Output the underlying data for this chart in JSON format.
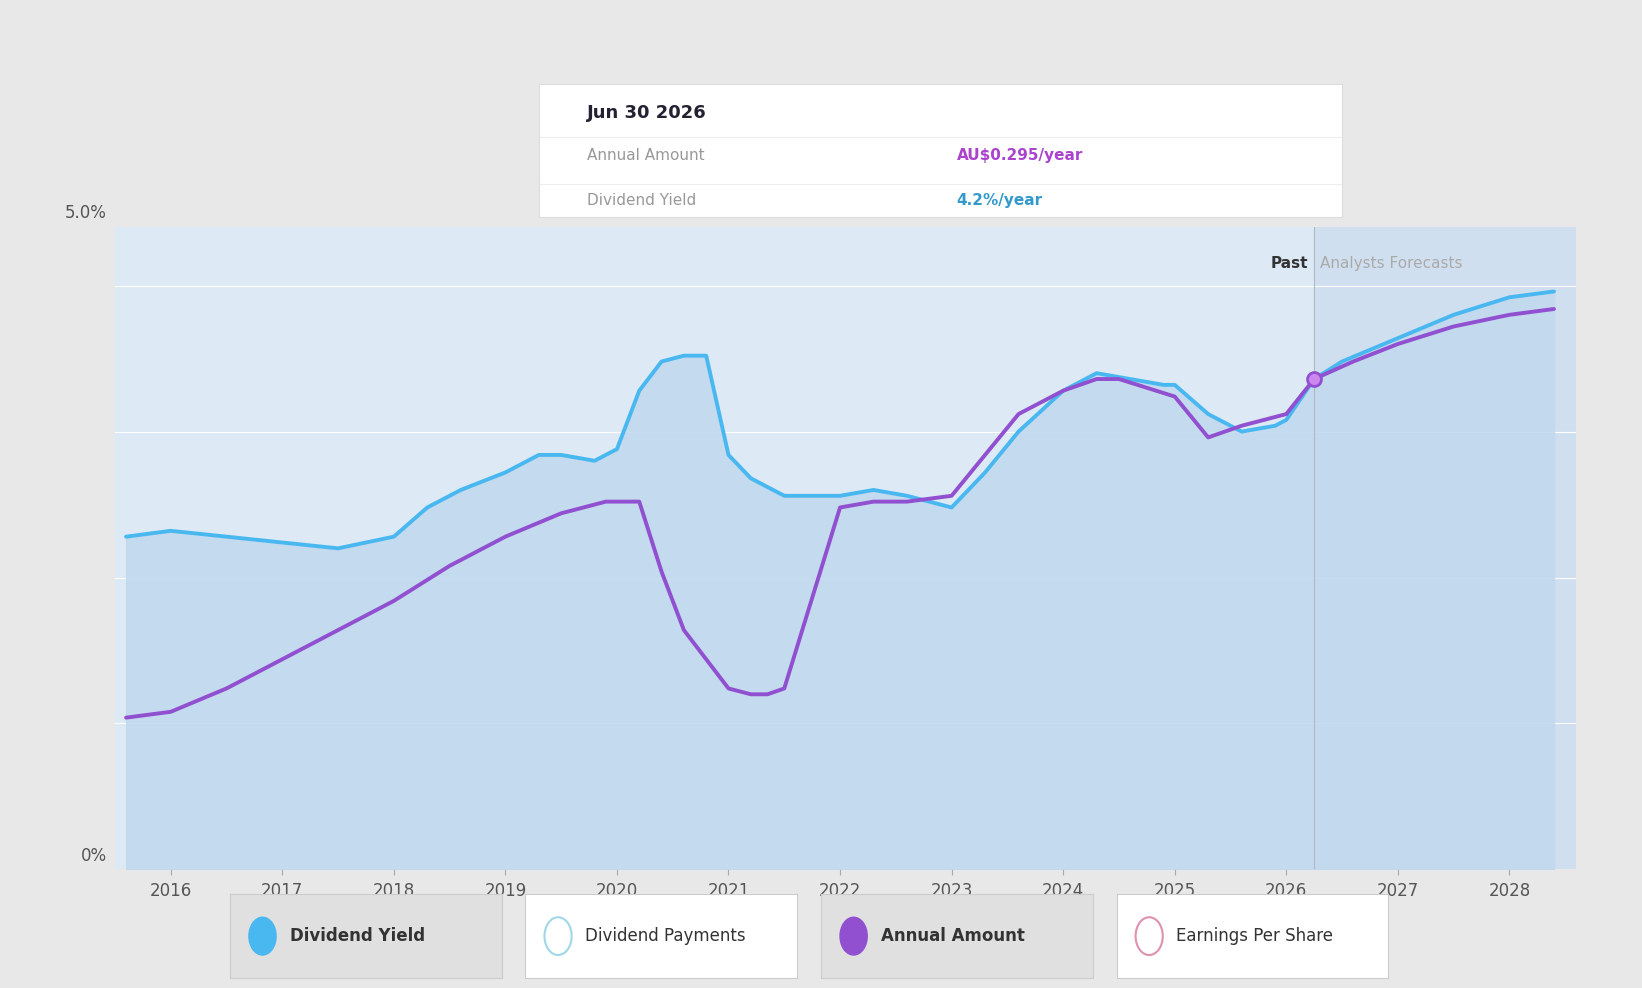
{
  "bg_color": "#e8e8e8",
  "plot_bg": "#ddeaf5",
  "forecast_bg": "#c8d8eb",
  "grid_color": "#f0f4f8",
  "div_yield_color": "#4ab8f0",
  "annual_amount_color": "#9050d0",
  "fill_color": "#c0d8ee",
  "past_label": "Past",
  "forecast_label": "Analysts Forecasts",
  "forecast_start": 2026.25,
  "tooltip_title": "Jun 30 2026",
  "tooltip_annual_label": "Annual Amount",
  "tooltip_annual_value": "AU$0.295/year",
  "tooltip_yield_label": "Dividend Yield",
  "tooltip_yield_value": "4.2%/year",
  "tooltip_annual_color": "#aa44cc",
  "tooltip_yield_color": "#3399cc",
  "legend_items": [
    "Dividend Yield",
    "Dividend Payments",
    "Annual Amount",
    "Earnings Per Share"
  ],
  "legend_colors_fill": [
    "#4ab8f0",
    "#a0d8e8",
    "#9050d0",
    "#e090b0"
  ],
  "legend_filled": [
    true,
    false,
    true,
    false
  ],
  "div_yield_x": [
    2015.6,
    2016.0,
    2016.5,
    2017.0,
    2017.5,
    2018.0,
    2018.3,
    2018.6,
    2019.0,
    2019.3,
    2019.5,
    2019.8,
    2020.0,
    2020.2,
    2020.4,
    2020.6,
    2020.8,
    2021.0,
    2021.2,
    2021.5,
    2021.7,
    2022.0,
    2022.3,
    2022.6,
    2023.0,
    2023.3,
    2023.6,
    2024.0,
    2024.3,
    2024.6,
    2024.9,
    2025.0,
    2025.3,
    2025.6,
    2025.9,
    2026.0,
    2026.25,
    2026.5,
    2027.0,
    2027.5,
    2028.0,
    2028.4
  ],
  "div_yield_y": [
    2.85,
    2.9,
    2.85,
    2.8,
    2.75,
    2.85,
    3.1,
    3.25,
    3.4,
    3.55,
    3.55,
    3.5,
    3.6,
    4.1,
    4.35,
    4.4,
    4.4,
    3.55,
    3.35,
    3.2,
    3.2,
    3.2,
    3.25,
    3.2,
    3.1,
    3.4,
    3.75,
    4.1,
    4.25,
    4.2,
    4.15,
    4.15,
    3.9,
    3.75,
    3.8,
    3.85,
    4.2,
    4.35,
    4.55,
    4.75,
    4.9,
    4.95
  ],
  "annual_amt_x": [
    2015.6,
    2016.0,
    2016.5,
    2017.0,
    2017.5,
    2018.0,
    2018.5,
    2019.0,
    2019.5,
    2019.7,
    2019.9,
    2020.0,
    2020.2,
    2020.4,
    2020.6,
    2021.0,
    2021.2,
    2021.35,
    2021.5,
    2022.0,
    2022.3,
    2022.6,
    2023.0,
    2023.3,
    2023.6,
    2024.0,
    2024.3,
    2024.5,
    2025.0,
    2025.3,
    2025.6,
    2026.0,
    2026.25,
    2026.6,
    2027.0,
    2027.5,
    2028.0,
    2028.4
  ],
  "annual_amt_y": [
    1.3,
    1.35,
    1.55,
    1.8,
    2.05,
    2.3,
    2.6,
    2.85,
    3.05,
    3.1,
    3.15,
    3.15,
    3.15,
    2.55,
    2.05,
    1.55,
    1.5,
    1.5,
    1.55,
    3.1,
    3.15,
    3.15,
    3.2,
    3.55,
    3.9,
    4.1,
    4.2,
    4.2,
    4.05,
    3.7,
    3.8,
    3.9,
    4.2,
    4.35,
    4.5,
    4.65,
    4.75,
    4.8
  ],
  "marker_x": 2026.25,
  "marker_y": 4.2,
  "xmin": 2015.5,
  "xmax": 2028.6,
  "ymin": 0.0,
  "ymax": 5.5
}
